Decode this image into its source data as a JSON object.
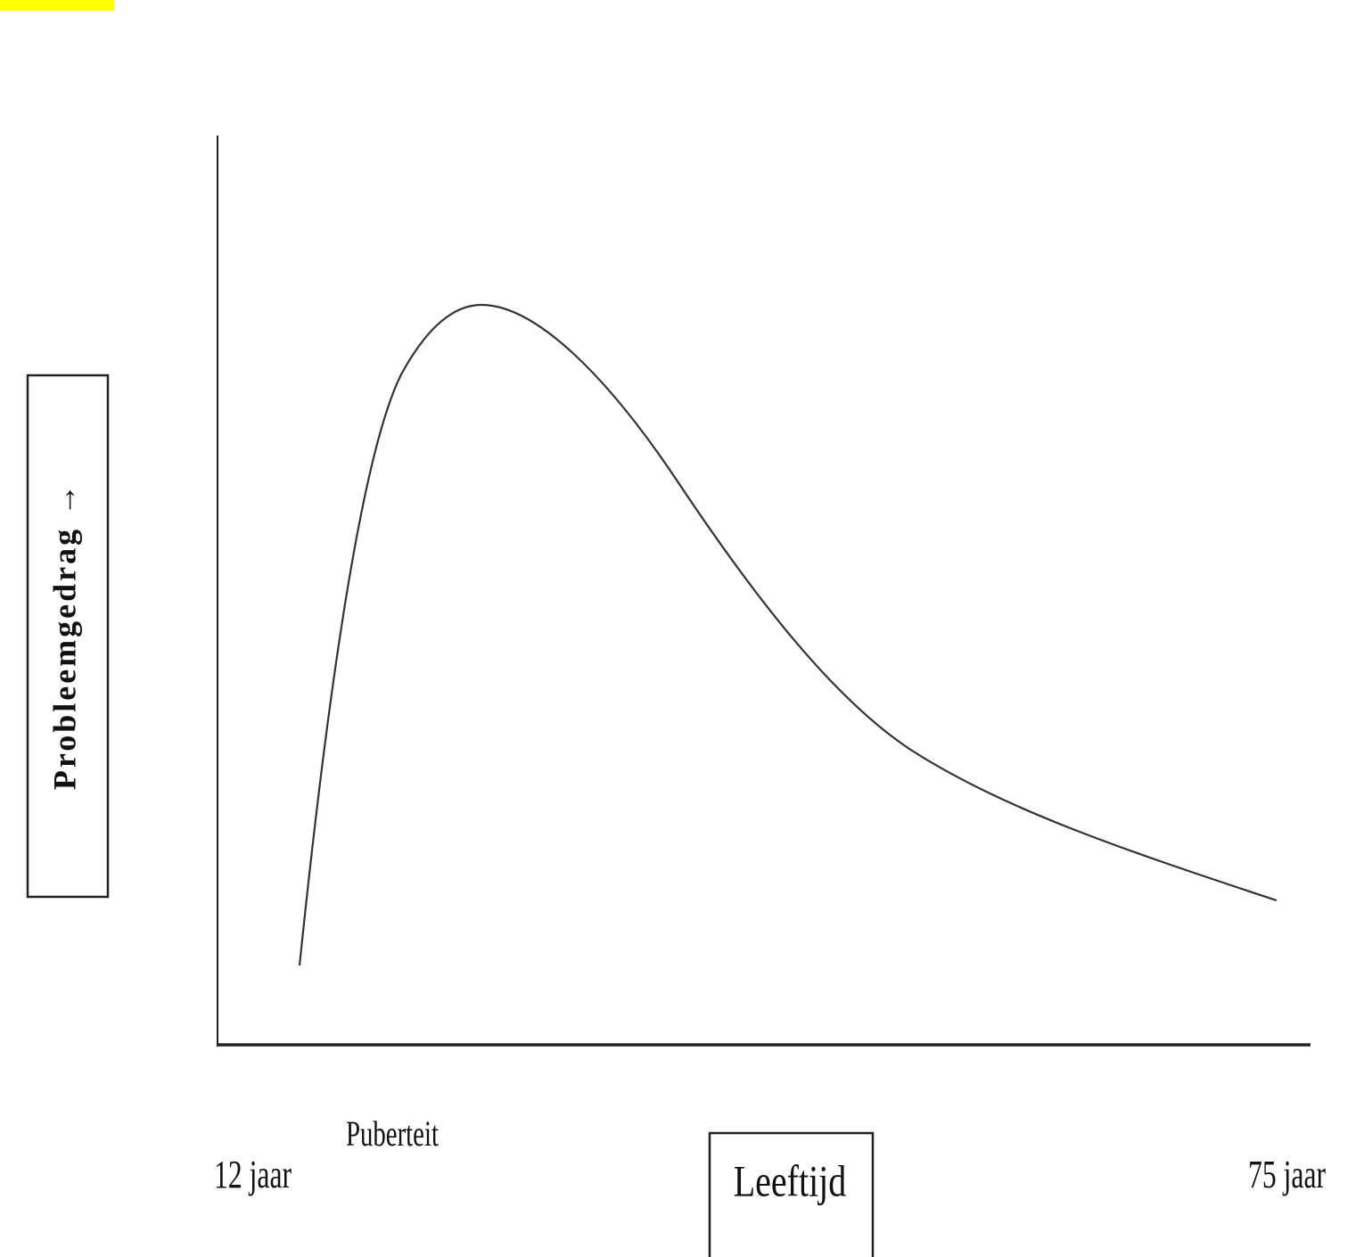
{
  "axis_labels": {
    "y": "Probleemgedrag →",
    "x": "Leeftijd"
  },
  "x_labels": {
    "start": "12 jaar",
    "marker": "Puberteit",
    "end": "75 jaar"
  }
}
